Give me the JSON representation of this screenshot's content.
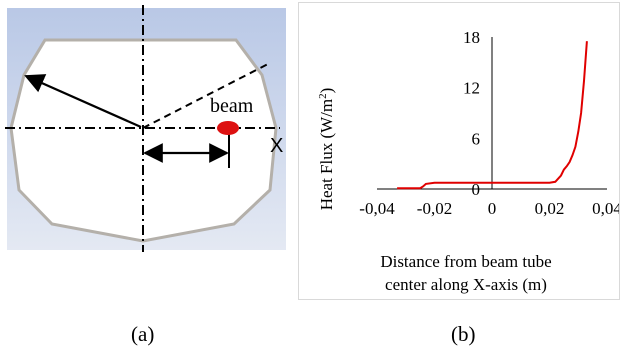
{
  "panel_a": {
    "beam_label": "beam",
    "x_axis_label": "X",
    "background_color": "#c7d4ea",
    "beam_color": "#dd1111",
    "outline_color": "#b4b0aa"
  },
  "panel_b": {
    "y_ticks": [
      "18",
      "12",
      "6",
      "0"
    ],
    "x_ticks": [
      "-0,04",
      "-0,02",
      "0",
      "0,02",
      "0,04"
    ],
    "ylabel_main": "Heat Flux (W/m",
    "ylabel_sup": "2",
    "ylabel_close": ")",
    "xlabel_line1": "Distance from beam tube",
    "xlabel_line2": "center along X-axis (m)"
  },
  "captions": {
    "a": "(a)",
    "b": "(b)"
  },
  "chart_data": {
    "type": "line",
    "xlabel": "Distance from beam tube center along X-axis (m)",
    "ylabel": "Heat Flux (W/m2)",
    "xlim": [
      -0.04,
      0.04
    ],
    "ylim": [
      0,
      18
    ],
    "line_color": "#e00000",
    "series": [
      {
        "x": [
          -0.033,
          -0.025,
          -0.024,
          -0.023,
          -0.02,
          -0.01,
          0,
          0.01,
          0.02,
          0.022,
          0.024,
          0.025,
          0.026,
          0.027,
          0.028,
          0.029,
          0.03,
          0.031,
          0.032,
          0.033
        ],
        "y": [
          0.1,
          0.1,
          0.3,
          0.6,
          0.75,
          0.75,
          0.75,
          0.75,
          0.75,
          0.85,
          1.6,
          2.3,
          2.7,
          3.2,
          4.0,
          5.0,
          6.8,
          9.0,
          12.8,
          17.5
        ]
      }
    ]
  }
}
